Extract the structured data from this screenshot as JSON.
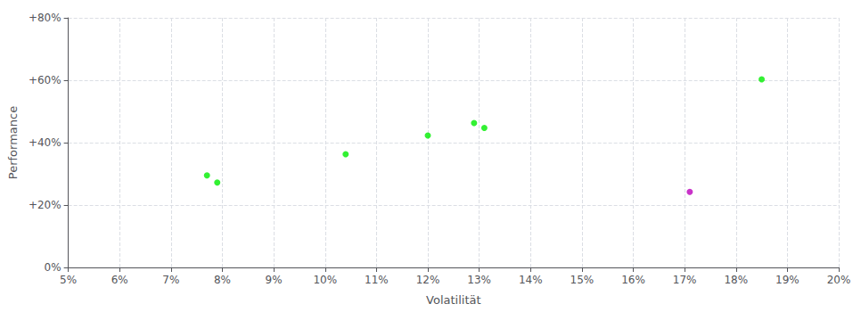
{
  "chart_data": {
    "type": "scatter",
    "xlabel": "Volatilität",
    "ylabel": "Performance",
    "grid": true,
    "xlim": [
      0.05,
      0.2
    ],
    "ylim": [
      0.0,
      0.8
    ],
    "xticks": [
      {
        "value": 0.05,
        "label": "5%"
      },
      {
        "value": 0.06,
        "label": "6%"
      },
      {
        "value": 0.07,
        "label": "7%"
      },
      {
        "value": 0.08,
        "label": "8%"
      },
      {
        "value": 0.09,
        "label": "9%"
      },
      {
        "value": 0.1,
        "label": "10%"
      },
      {
        "value": 0.11,
        "label": "11%"
      },
      {
        "value": 0.12,
        "label": "12%"
      },
      {
        "value": 0.13,
        "label": "13%"
      },
      {
        "value": 0.14,
        "label": "14%"
      },
      {
        "value": 0.15,
        "label": "15%"
      },
      {
        "value": 0.16,
        "label": "16%"
      },
      {
        "value": 0.17,
        "label": "17%"
      },
      {
        "value": 0.18,
        "label": "18%"
      },
      {
        "value": 0.19,
        "label": "19%"
      },
      {
        "value": 0.2,
        "label": "20%"
      }
    ],
    "yticks": [
      {
        "value": 0.0,
        "label": "0%"
      },
      {
        "value": 0.2,
        "label": "+20%"
      },
      {
        "value": 0.4,
        "label": "+40%"
      },
      {
        "value": 0.6,
        "label": "+60%"
      },
      {
        "value": 0.8,
        "label": "+80%"
      }
    ],
    "series": [
      {
        "color": "#00ee00",
        "x": [
          0.077,
          0.079,
          0.104,
          0.12,
          0.129,
          0.131,
          0.185
        ],
        "values": [
          0.295,
          0.272,
          0.363,
          0.423,
          0.463,
          0.447,
          0.603
        ]
      },
      {
        "color": "#bb00bb",
        "x": [
          0.171
        ],
        "values": [
          0.242
        ]
      }
    ]
  }
}
